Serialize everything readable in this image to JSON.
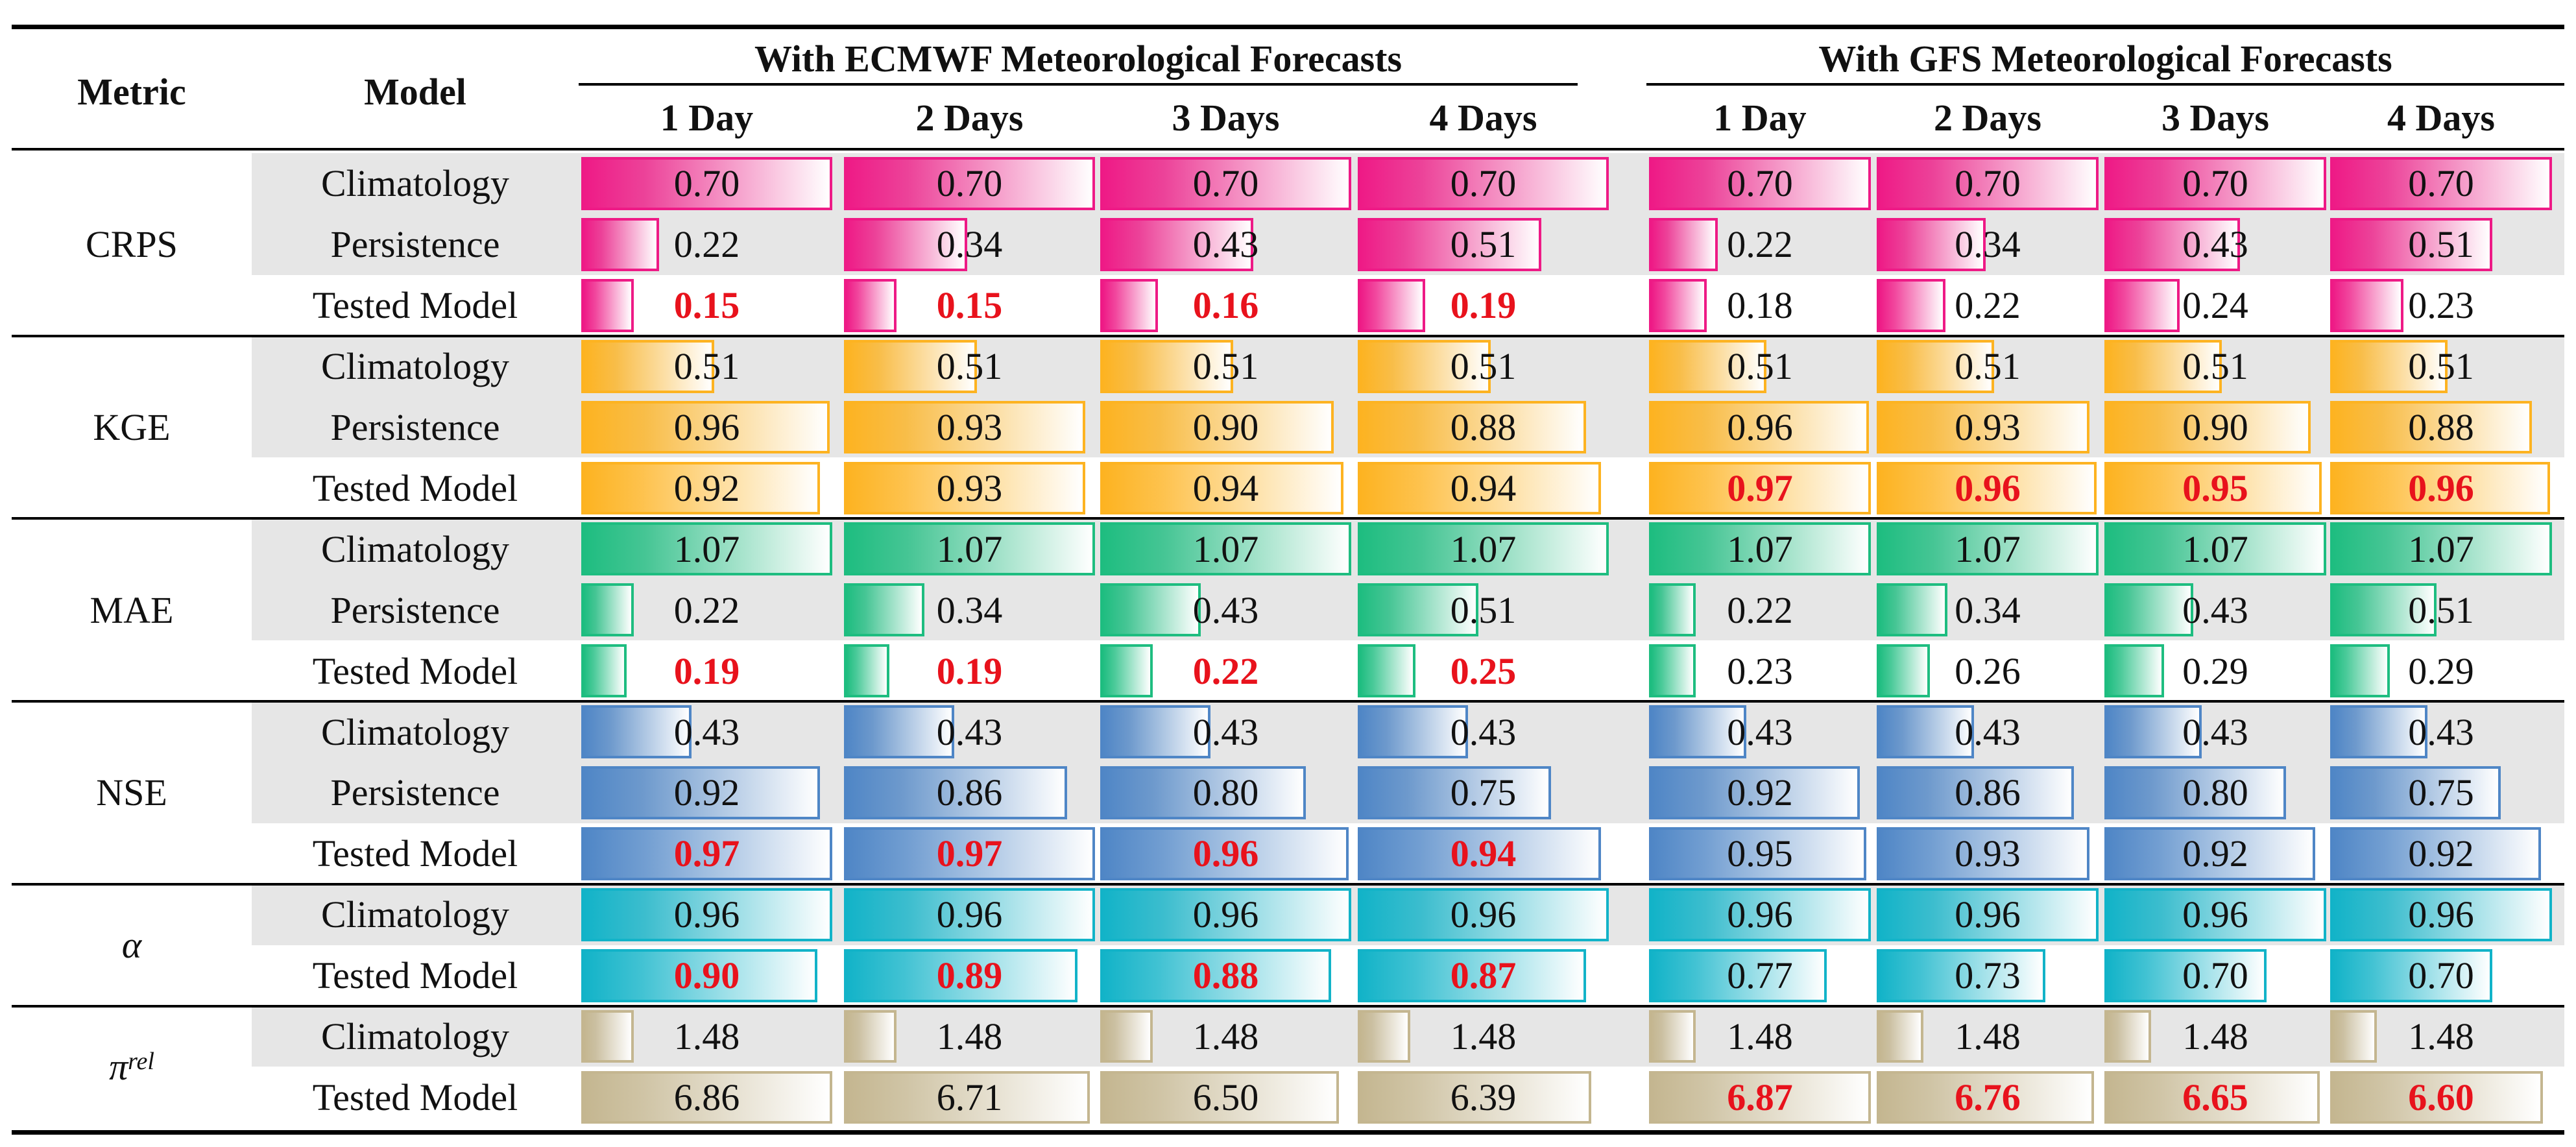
{
  "table": {
    "headers": {
      "metric": "Metric",
      "model": "Model",
      "groups": [
        "With ECMWF Meteorological Forecasts",
        "With GFS Meteorological Forecasts"
      ],
      "horizons": [
        "1 Day",
        "2 Days",
        "3 Days",
        "4 Days",
        "1 Day",
        "2 Days",
        "3 Days",
        "4 Days"
      ]
    },
    "colors": {
      "CRPS": "#ee1a86",
      "KGE": "#fdb321",
      "MAE": "#1ebd80",
      "NSE": "#4f86c6",
      "alpha": "#12b3c8",
      "pi_rel": "#c4b690",
      "best_text": "#e8121c"
    },
    "rows": [
      {
        "metric": "CRPS",
        "model": "Climatology",
        "shade": true,
        "values": [
          "0.70",
          "0.70",
          "0.70",
          "0.70",
          "0.70",
          "0.70",
          "0.70",
          "0.70"
        ],
        "bars": [
          1.0,
          1.0,
          1.0,
          1.0,
          1.0,
          1.0,
          1.0,
          1.0
        ],
        "best": [
          false,
          false,
          false,
          false,
          false,
          false,
          false,
          false
        ]
      },
      {
        "metric": "CRPS",
        "model": "Persistence",
        "shade": true,
        "values": [
          "0.22",
          "0.34",
          "0.43",
          "0.51",
          "0.22",
          "0.34",
          "0.43",
          "0.51"
        ],
        "bars": [
          0.31,
          0.49,
          0.61,
          0.73,
          0.31,
          0.49,
          0.61,
          0.73
        ],
        "best": [
          false,
          false,
          false,
          false,
          false,
          false,
          false,
          false
        ]
      },
      {
        "metric": "CRPS",
        "model": "Tested Model",
        "shade": false,
        "values": [
          "0.15",
          "0.15",
          "0.16",
          "0.19",
          "0.18",
          "0.22",
          "0.24",
          "0.23"
        ],
        "bars": [
          0.21,
          0.21,
          0.23,
          0.27,
          0.26,
          0.31,
          0.34,
          0.33
        ],
        "best": [
          true,
          true,
          true,
          true,
          false,
          false,
          false,
          false
        ]
      },
      {
        "metric": "KGE",
        "model": "Climatology",
        "shade": true,
        "values": [
          "0.51",
          "0.51",
          "0.51",
          "0.51",
          "0.51",
          "0.51",
          "0.51",
          "0.51"
        ],
        "bars": [
          0.53,
          0.53,
          0.53,
          0.53,
          0.53,
          0.53,
          0.53,
          0.53
        ],
        "best": [
          false,
          false,
          false,
          false,
          false,
          false,
          false,
          false
        ]
      },
      {
        "metric": "KGE",
        "model": "Persistence",
        "shade": true,
        "values": [
          "0.96",
          "0.93",
          "0.90",
          "0.88",
          "0.96",
          "0.93",
          "0.90",
          "0.88"
        ],
        "bars": [
          0.99,
          0.96,
          0.93,
          0.91,
          0.99,
          0.96,
          0.93,
          0.91
        ],
        "best": [
          false,
          false,
          false,
          false,
          false,
          false,
          false,
          false
        ]
      },
      {
        "metric": "KGE",
        "model": "Tested Model",
        "shade": false,
        "values": [
          "0.92",
          "0.93",
          "0.94",
          "0.94",
          "0.97",
          "0.96",
          "0.95",
          "0.96"
        ],
        "bars": [
          0.95,
          0.96,
          0.97,
          0.97,
          1.0,
          0.99,
          0.98,
          0.99
        ],
        "best": [
          false,
          false,
          false,
          false,
          true,
          true,
          true,
          true
        ]
      },
      {
        "metric": "MAE",
        "model": "Climatology",
        "shade": true,
        "values": [
          "1.07",
          "1.07",
          "1.07",
          "1.07",
          "1.07",
          "1.07",
          "1.07",
          "1.07"
        ],
        "bars": [
          1.0,
          1.0,
          1.0,
          1.0,
          1.0,
          1.0,
          1.0,
          1.0
        ],
        "best": [
          false,
          false,
          false,
          false,
          false,
          false,
          false,
          false
        ]
      },
      {
        "metric": "MAE",
        "model": "Persistence",
        "shade": true,
        "values": [
          "0.22",
          "0.34",
          "0.43",
          "0.51",
          "0.22",
          "0.34",
          "0.43",
          "0.51"
        ],
        "bars": [
          0.21,
          0.32,
          0.4,
          0.48,
          0.21,
          0.32,
          0.4,
          0.48
        ],
        "best": [
          false,
          false,
          false,
          false,
          false,
          false,
          false,
          false
        ]
      },
      {
        "metric": "MAE",
        "model": "Tested Model",
        "shade": false,
        "values": [
          "0.19",
          "0.19",
          "0.22",
          "0.25",
          "0.23",
          "0.26",
          "0.29",
          "0.29"
        ],
        "bars": [
          0.18,
          0.18,
          0.21,
          0.23,
          0.21,
          0.24,
          0.27,
          0.27
        ],
        "best": [
          true,
          true,
          true,
          true,
          false,
          false,
          false,
          false
        ]
      },
      {
        "metric": "NSE",
        "model": "Climatology",
        "shade": true,
        "values": [
          "0.43",
          "0.43",
          "0.43",
          "0.43",
          "0.43",
          "0.43",
          "0.43",
          "0.43"
        ],
        "bars": [
          0.44,
          0.44,
          0.44,
          0.44,
          0.44,
          0.44,
          0.44,
          0.44
        ],
        "best": [
          false,
          false,
          false,
          false,
          false,
          false,
          false,
          false
        ]
      },
      {
        "metric": "NSE",
        "model": "Persistence",
        "shade": true,
        "values": [
          "0.92",
          "0.86",
          "0.80",
          "0.75",
          "0.92",
          "0.86",
          "0.80",
          "0.75"
        ],
        "bars": [
          0.95,
          0.89,
          0.82,
          0.77,
          0.95,
          0.89,
          0.82,
          0.77
        ],
        "best": [
          false,
          false,
          false,
          false,
          false,
          false,
          false,
          false
        ]
      },
      {
        "metric": "NSE",
        "model": "Tested Model",
        "shade": false,
        "values": [
          "0.97",
          "0.97",
          "0.96",
          "0.94",
          "0.95",
          "0.93",
          "0.92",
          "0.92"
        ],
        "bars": [
          1.0,
          1.0,
          0.99,
          0.97,
          0.98,
          0.96,
          0.95,
          0.95
        ],
        "best": [
          true,
          true,
          true,
          true,
          false,
          false,
          false,
          false
        ]
      },
      {
        "metric": "alpha",
        "model": "Climatology",
        "shade": true,
        "values": [
          "0.96",
          "0.96",
          "0.96",
          "0.96",
          "0.96",
          "0.96",
          "0.96",
          "0.96"
        ],
        "bars": [
          1.0,
          1.0,
          1.0,
          1.0,
          1.0,
          1.0,
          1.0,
          1.0
        ],
        "best": [
          false,
          false,
          false,
          false,
          false,
          false,
          false,
          false
        ]
      },
      {
        "metric": "alpha",
        "model": "Tested Model",
        "shade": false,
        "values": [
          "0.90",
          "0.89",
          "0.88",
          "0.87",
          "0.77",
          "0.73",
          "0.70",
          "0.70"
        ],
        "bars": [
          0.94,
          0.93,
          0.92,
          0.91,
          0.8,
          0.76,
          0.73,
          0.73
        ],
        "best": [
          true,
          true,
          true,
          true,
          false,
          false,
          false,
          false
        ]
      },
      {
        "metric": "pi_rel",
        "model": "Climatology",
        "shade": true,
        "values": [
          "1.48",
          "1.48",
          "1.48",
          "1.48",
          "1.48",
          "1.48",
          "1.48",
          "1.48"
        ],
        "bars": [
          0.21,
          0.21,
          0.21,
          0.21,
          0.21,
          0.21,
          0.21,
          0.21
        ],
        "best": [
          false,
          false,
          false,
          false,
          false,
          false,
          false,
          false
        ]
      },
      {
        "metric": "pi_rel",
        "model": "Tested Model",
        "shade": false,
        "values": [
          "6.86",
          "6.71",
          "6.50",
          "6.39",
          "6.87",
          "6.76",
          "6.65",
          "6.60"
        ],
        "bars": [
          1.0,
          0.98,
          0.95,
          0.93,
          1.0,
          0.98,
          0.97,
          0.96
        ],
        "best": [
          false,
          false,
          false,
          false,
          true,
          true,
          true,
          true
        ]
      }
    ],
    "metric_labels": {
      "CRPS": "CRPS",
      "KGE": "KGE",
      "MAE": "MAE",
      "NSE": "NSE",
      "alpha": "α",
      "pi_rel_base": "π",
      "pi_rel_sup": "rel"
    }
  }
}
